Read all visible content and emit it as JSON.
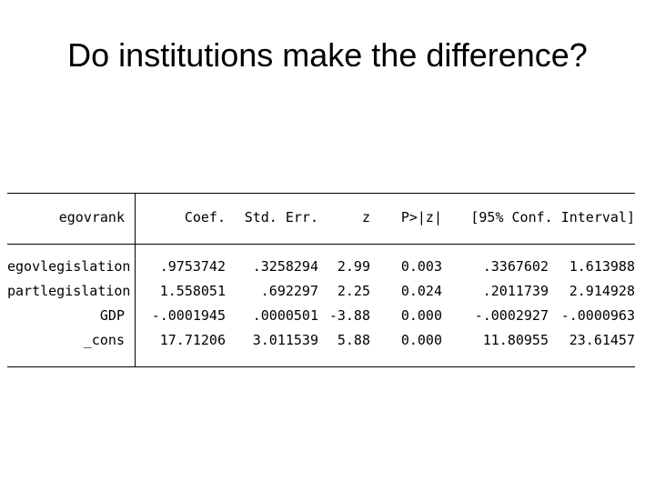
{
  "slide": {
    "title": "Do institutions make the difference?"
  },
  "regression": {
    "depvar": "egovrank",
    "headers": {
      "coef": "Coef.",
      "se": "Std. Err.",
      "z": "z",
      "p": "P>|z|",
      "ci": "[95% Conf. Interval]"
    },
    "rows": [
      {
        "var": "egovlegislation",
        "coef": ".9753742",
        "se": ".3258294",
        "z": "2.99",
        "p": "0.003",
        "lo": ".3367602",
        "hi": "1.613988"
      },
      {
        "var": "partlegislation",
        "coef": "1.558051",
        "se": ".692297",
        "z": "2.25",
        "p": "0.024",
        "lo": ".2011739",
        "hi": "2.914928"
      },
      {
        "var": "GDP",
        "coef": "-.0001945",
        "se": ".0000501",
        "z": "-3.88",
        "p": "0.000",
        "lo": "-.0002927",
        "hi": "-.0000963"
      },
      {
        "var": "_cons",
        "coef": "17.71206",
        "se": "3.011539",
        "z": "5.88",
        "p": "0.000",
        "lo": "11.80955",
        "hi": "23.61457"
      }
    ]
  }
}
